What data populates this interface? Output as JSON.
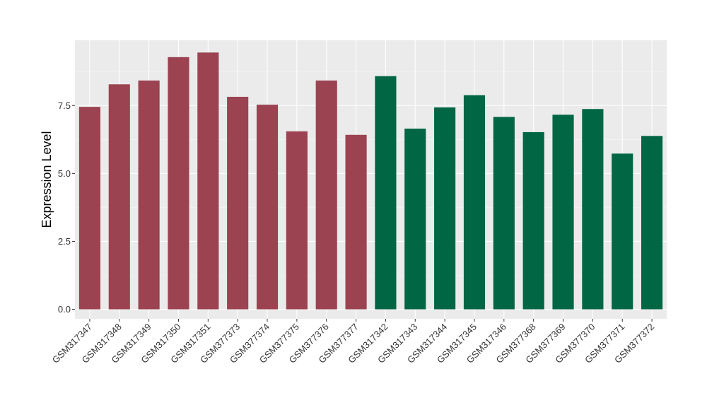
{
  "chart_data": {
    "type": "bar",
    "title": "",
    "xlabel": "",
    "ylabel": "Expression Level",
    "ylim": [
      -0.35,
      9.9
    ],
    "yticks": [
      0.0,
      2.5,
      5.0,
      7.5
    ],
    "ytick_labels": [
      "0.0",
      "2.5",
      "5.0",
      "7.5"
    ],
    "grid": true,
    "legend": "none",
    "categories": [
      "GSM317347",
      "GSM317348",
      "GSM317349",
      "GSM317350",
      "GSM317351",
      "GSM377373",
      "GSM377374",
      "GSM377375",
      "GSM377376",
      "GSM377377",
      "GSM317342",
      "GSM317343",
      "GSM317344",
      "GSM317345",
      "GSM317346",
      "GSM377368",
      "GSM377369",
      "GSM377370",
      "GSM377371",
      "GSM377372"
    ],
    "values": [
      7.45,
      8.28,
      8.42,
      9.28,
      9.45,
      7.82,
      7.53,
      6.55,
      8.42,
      6.42,
      8.58,
      6.65,
      7.43,
      7.88,
      7.08,
      6.52,
      7.16,
      7.37,
      5.73,
      6.38
    ],
    "group_of_bar": [
      0,
      0,
      0,
      0,
      0,
      0,
      0,
      0,
      0,
      0,
      1,
      1,
      1,
      1,
      1,
      1,
      1,
      1,
      1,
      1
    ],
    "colors": {
      "group_fills": [
        "#9b4350",
        "#006644"
      ],
      "panel_background": "#ebebeb",
      "grid_major": "#ffffff",
      "grid_minor": "#f5f5f5",
      "tick": "#333333"
    }
  }
}
